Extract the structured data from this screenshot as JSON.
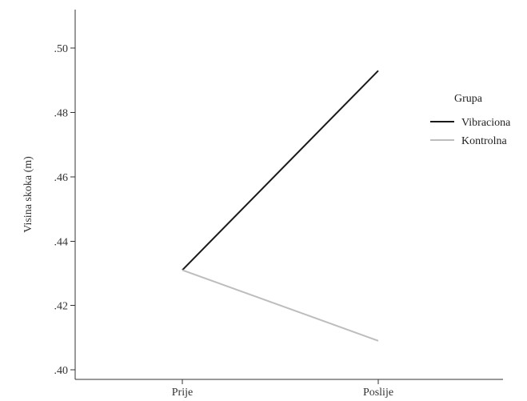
{
  "chart_data": {
    "type": "line",
    "title": "",
    "xlabel": "",
    "ylabel": "Visina skoka (m)",
    "categories": [
      "Prije",
      "Poslije"
    ],
    "ylim": [
      0.397,
      0.512
    ],
    "yticks": [
      0.4,
      0.42,
      0.44,
      0.46,
      0.48,
      0.5
    ],
    "ytick_labels": [
      ".40",
      ".42",
      ".44",
      ".46",
      ".48",
      ".50"
    ],
    "grid": false,
    "legend": {
      "title": "Grupa",
      "placement": "right"
    },
    "series": [
      {
        "name": "Vibraciona",
        "color": "#1a1a1a",
        "values": [
          0.431,
          0.493
        ]
      },
      {
        "name": "Kontrolna",
        "color": "#bdbdbd",
        "values": [
          0.431,
          0.409
        ]
      }
    ]
  }
}
